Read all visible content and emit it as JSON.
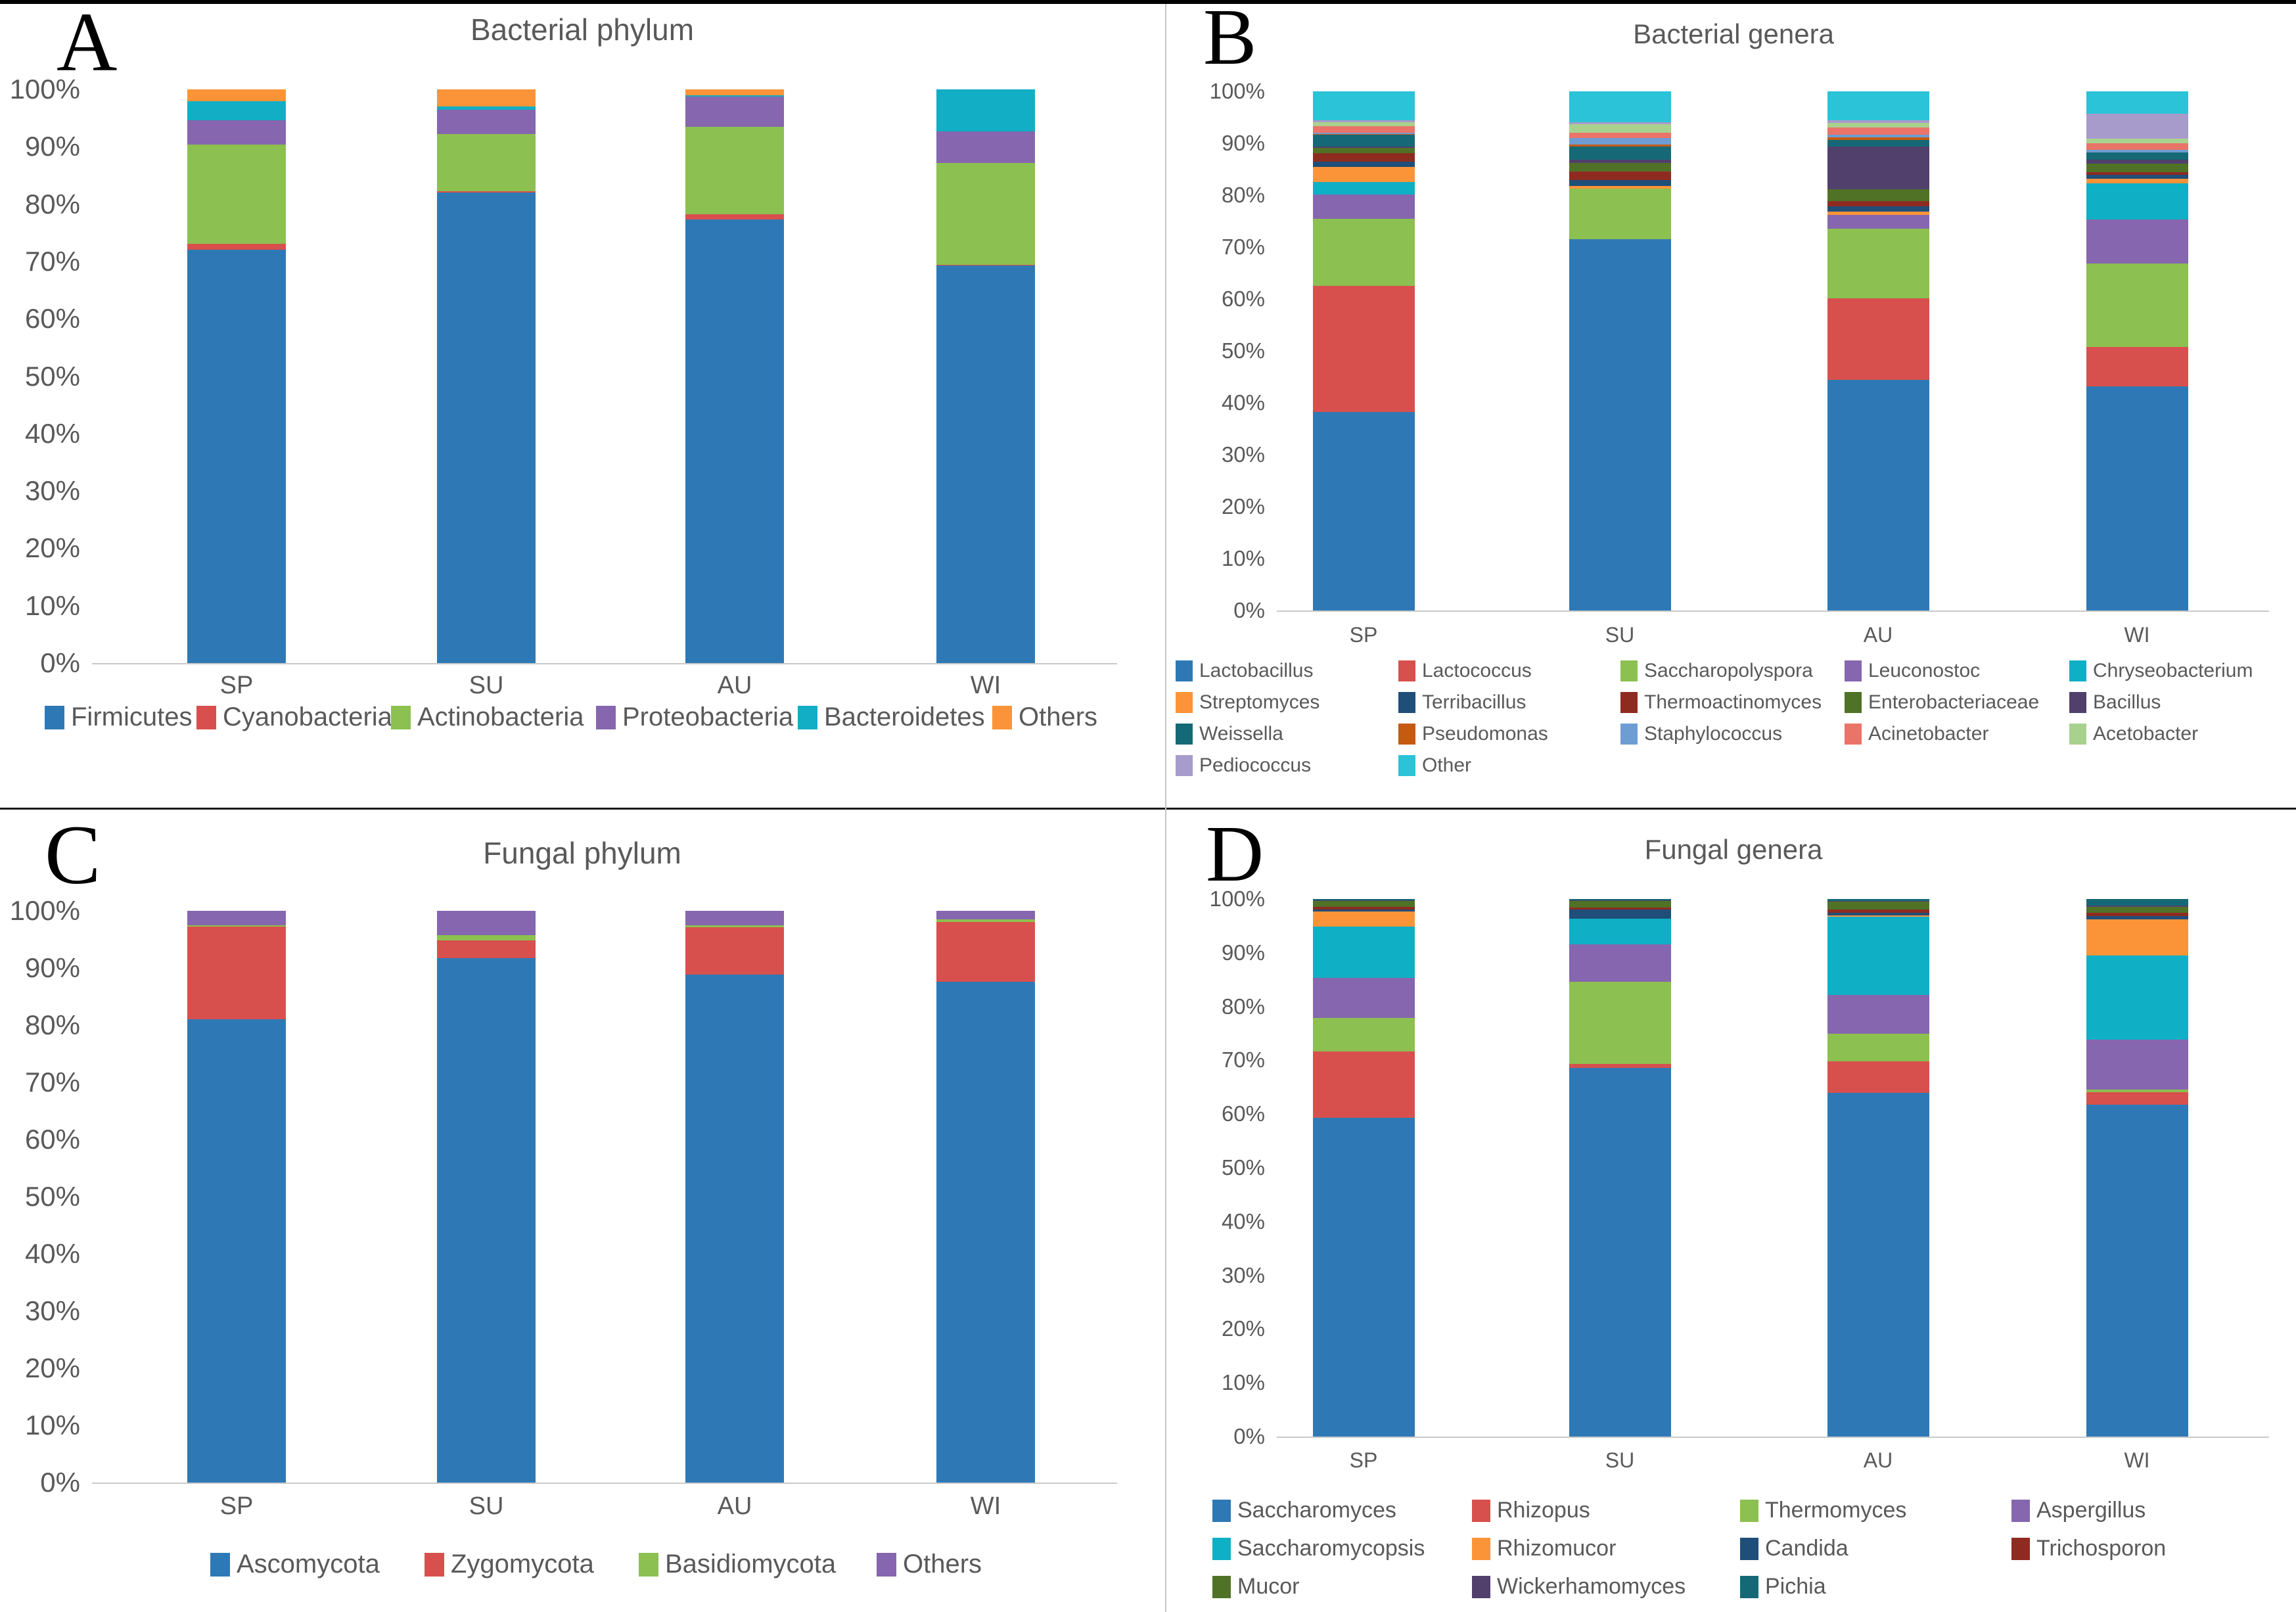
{
  "chart_data": [
    {
      "type": "bar",
      "stacked": true,
      "panel_letter": "A",
      "title": "Bacterial phylum",
      "categories": [
        "SP",
        "SU",
        "AU",
        "WI"
      ],
      "y_ticks": [
        "100%",
        "90%",
        "80%",
        "70%",
        "60%",
        "50%",
        "40%",
        "30%",
        "20%",
        "10%",
        "0%"
      ],
      "ylim": [
        0,
        100
      ],
      "grid": false,
      "legend_position": "bottom",
      "series": [
        {
          "name": "Firmicutes",
          "color": "#2E79B5",
          "values": [
            72.0,
            82.0,
            77.3,
            69.3
          ]
        },
        {
          "name": "Cyanobacteria",
          "color": "#D8504D",
          "values": [
            1.1,
            0.2,
            0.9,
            0.1
          ]
        },
        {
          "name": "Actinobacteria",
          "color": "#8CC050",
          "values": [
            17.3,
            10.0,
            15.3,
            17.8
          ]
        },
        {
          "name": "Proteobacteria",
          "color": "#8666AE",
          "values": [
            4.2,
            4.3,
            5.2,
            5.5
          ]
        },
        {
          "name": "Bacteroidetes",
          "color": "#12AEC5",
          "values": [
            3.4,
            0.5,
            0.3,
            7.3
          ]
        },
        {
          "name": "Others",
          "color": "#FB9438",
          "values": [
            2.0,
            3.0,
            1.0,
            0.0
          ]
        }
      ]
    },
    {
      "type": "bar",
      "stacked": true,
      "panel_letter": "B",
      "title": "Bacterial genera",
      "categories": [
        "SP",
        "SU",
        "AU",
        "WI"
      ],
      "y_ticks": [
        "100%",
        "90%",
        "80%",
        "70%",
        "60%",
        "50%",
        "40%",
        "30%",
        "20%",
        "10%",
        "0%"
      ],
      "ylim": [
        0,
        100
      ],
      "grid": false,
      "legend_position": "bottom",
      "series": [
        {
          "name": "Lactobacillus",
          "color": "#2E79B5",
          "values": [
            38.2,
            71.5,
            44.4,
            43.2
          ]
        },
        {
          "name": "Lactococcus",
          "color": "#D8504D",
          "values": [
            24.3,
            0.0,
            15.7,
            7.6
          ]
        },
        {
          "name": "Saccharopolyspora",
          "color": "#8CC050",
          "values": [
            13.0,
            9.8,
            13.4,
            16.1
          ]
        },
        {
          "name": "Leuconostoc",
          "color": "#8666AE",
          "values": [
            4.6,
            0.0,
            2.7,
            8.4
          ]
        },
        {
          "name": "Chryseobacterium",
          "color": "#0FAFC6",
          "values": [
            2.5,
            0.0,
            0.0,
            7.0
          ]
        },
        {
          "name": "Streptomyces",
          "color": "#FB9438",
          "values": [
            2.9,
            0.5,
            0.6,
            0.9
          ]
        },
        {
          "name": "Terribacillus",
          "color": "#1F4E79",
          "values": [
            1.0,
            1.1,
            1.0,
            0.7
          ]
        },
        {
          "name": "Thermoactinomyces",
          "color": "#8E2B21",
          "values": [
            1.6,
            1.7,
            1.1,
            0.6
          ]
        },
        {
          "name": "Enterobacteriaceae",
          "color": "#507226",
          "values": [
            1.0,
            1.6,
            2.3,
            1.6
          ]
        },
        {
          "name": "Bacillus",
          "color": "#50406B",
          "values": [
            0.3,
            0.6,
            8.2,
            0.8
          ]
        },
        {
          "name": "Weissella",
          "color": "#156976",
          "values": [
            2.2,
            2.6,
            1.3,
            1.3
          ]
        },
        {
          "name": "Pseudomonas",
          "color": "#C55A11",
          "values": [
            0.2,
            0.3,
            0.4,
            0.1
          ]
        },
        {
          "name": "Staphylococcus",
          "color": "#6E9DD4",
          "values": [
            0.3,
            1.3,
            0.6,
            0.5
          ]
        },
        {
          "name": "Acinetobacter",
          "color": "#EA7468",
          "values": [
            1.2,
            1.1,
            1.4,
            1.2
          ]
        },
        {
          "name": "Acetobacter",
          "color": "#A9D18E",
          "values": [
            0.8,
            1.6,
            0.9,
            0.9
          ]
        },
        {
          "name": "Pediococcus",
          "color": "#A79BCB",
          "values": [
            0.4,
            0.4,
            0.4,
            4.8
          ]
        },
        {
          "name": "Other",
          "color": "#2BC3D7",
          "values": [
            5.5,
            5.9,
            5.6,
            4.3
          ]
        }
      ]
    },
    {
      "type": "bar",
      "stacked": true,
      "panel_letter": "C",
      "title": "Fungal phylum",
      "categories": [
        "SP",
        "SU",
        "AU",
        "WI"
      ],
      "y_ticks": [
        "100%",
        "90%",
        "80%",
        "70%",
        "60%",
        "50%",
        "40%",
        "30%",
        "20%",
        "10%",
        "0%"
      ],
      "ylim": [
        0,
        100
      ],
      "grid": false,
      "legend_position": "bottom",
      "series": [
        {
          "name": "Ascomycota",
          "color": "#2E79B5",
          "values": [
            81.0,
            91.7,
            88.9,
            87.6
          ]
        },
        {
          "name": "Zygomycota",
          "color": "#D8504D",
          "values": [
            16.2,
            3.1,
            8.2,
            10.5
          ]
        },
        {
          "name": "Basidiomycota",
          "color": "#8CC050",
          "values": [
            0.3,
            0.9,
            0.4,
            0.4
          ]
        },
        {
          "name": "Others",
          "color": "#8666AE",
          "values": [
            2.5,
            4.3,
            2.5,
            1.5
          ]
        }
      ]
    },
    {
      "type": "bar",
      "stacked": true,
      "panel_letter": "D",
      "title": "Fungal genera",
      "categories": [
        "SP",
        "SU",
        "AU",
        "WI"
      ],
      "y_ticks": [
        "100%",
        "90%",
        "80%",
        "70%",
        "60%",
        "50%",
        "40%",
        "30%",
        "20%",
        "10%",
        "0%"
      ],
      "ylim": [
        0,
        100
      ],
      "grid": false,
      "legend_position": "bottom",
      "series": [
        {
          "name": "Saccharomyces",
          "color": "#2E79B5",
          "values": [
            59.3,
            68.6,
            63.9,
            61.7
          ]
        },
        {
          "name": "Rhizopus",
          "color": "#D8504D",
          "values": [
            12.4,
            0.7,
            5.9,
            2.3
          ]
        },
        {
          "name": "Thermomyces",
          "color": "#8CC050",
          "values": [
            6.2,
            15.3,
            5.1,
            0.5
          ]
        },
        {
          "name": "Aspergillus",
          "color": "#8666AE",
          "values": [
            7.4,
            7.0,
            7.3,
            9.4
          ]
        },
        {
          "name": "Saccharomycopsis",
          "color": "#0FAFC6",
          "values": [
            9.6,
            4.7,
            14.5,
            15.6
          ]
        },
        {
          "name": "Rhizomucor",
          "color": "#FB9438",
          "values": [
            2.8,
            0.0,
            0.3,
            6.7
          ]
        },
        {
          "name": "Candida",
          "color": "#1F4E79",
          "values": [
            0.4,
            1.8,
            0.5,
            0.6
          ]
        },
        {
          "name": "Trichosporon",
          "color": "#8E2B21",
          "values": [
            0.5,
            0.3,
            0.6,
            0.6
          ]
        },
        {
          "name": "Mucor",
          "color": "#507226",
          "values": [
            1.0,
            1.2,
            1.4,
            1.1
          ]
        },
        {
          "name": "Wickerhamomyces",
          "color": "#50406B",
          "values": [
            0.2,
            0.2,
            0.2,
            0.3
          ]
        },
        {
          "name": "Pichia",
          "color": "#156976",
          "values": [
            0.2,
            0.2,
            0.3,
            1.2
          ]
        }
      ]
    }
  ]
}
